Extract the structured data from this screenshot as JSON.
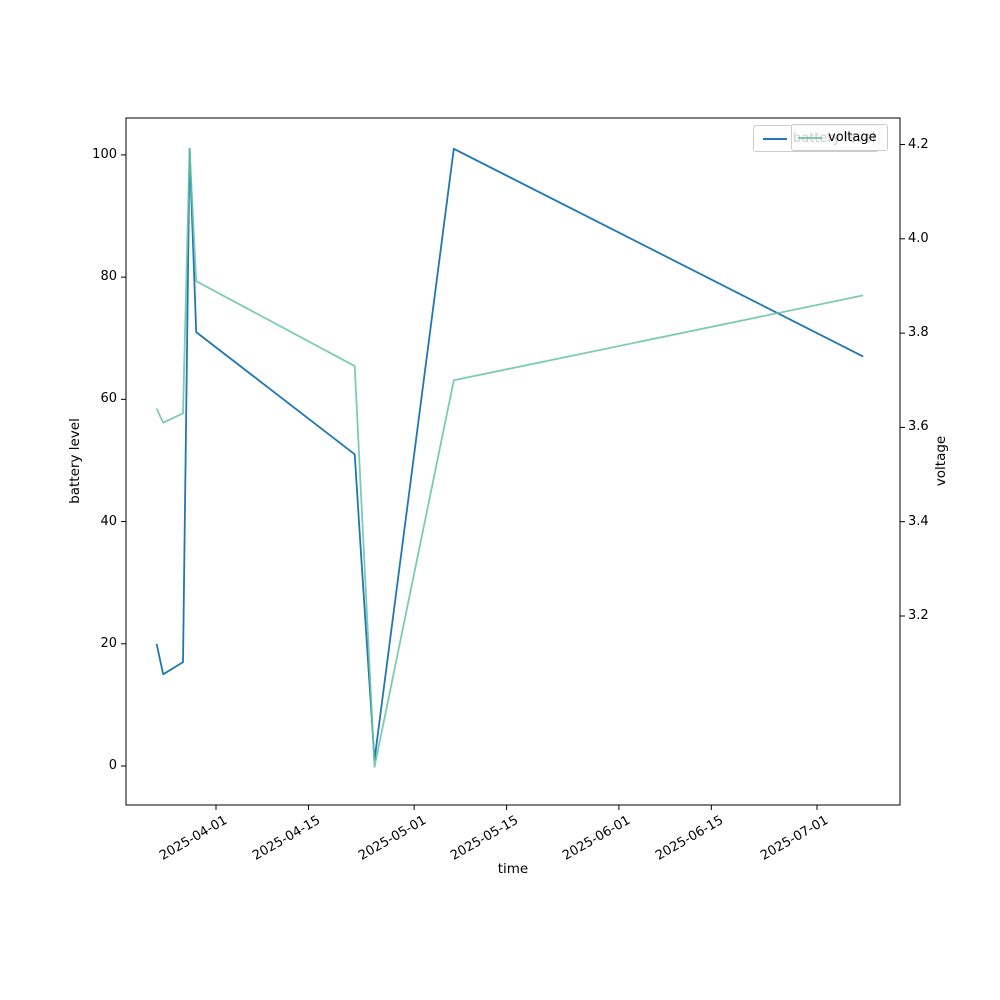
{
  "figure": {
    "background": "#ffffff",
    "frame_color": "#000000"
  },
  "chart_data": {
    "type": "line",
    "title": "",
    "xlabel": "time",
    "grid": false,
    "x_tick_labels": [
      "2025-04-01",
      "2025-04-15",
      "2025-05-01",
      "2025-05-15",
      "2025-06-01",
      "2025-06-15",
      "2025-07-01"
    ],
    "axes": {
      "left": {
        "label": "battery level",
        "tick_labels": [
          "0",
          "20",
          "40",
          "60",
          "80",
          "100"
        ],
        "range": [
          -6,
          106
        ]
      },
      "right": {
        "label": "voltage",
        "tick_labels": [
          "3.2",
          "3.4",
          "3.6",
          "3.8",
          "4.0",
          "4.2"
        ],
        "range": [
          2.8,
          4.26
        ]
      }
    },
    "legend": {
      "position": "upper right",
      "entries": [
        "battery level",
        "voltage"
      ]
    },
    "series": [
      {
        "name": "battery level",
        "axis": "left",
        "color": "#1f77b4",
        "opacity": 1,
        "points": [
          [
            "2025-03-23",
            20
          ],
          [
            "2025-03-24",
            15
          ],
          [
            "2025-03-27",
            17
          ],
          [
            "2025-03-28",
            101
          ],
          [
            "2025-03-29",
            71
          ],
          [
            "2025-04-22",
            51
          ],
          [
            "2025-04-23",
            34
          ],
          [
            "2025-04-25",
            1
          ],
          [
            "2025-05-07",
            101
          ],
          [
            "2025-07-08",
            67
          ]
        ]
      },
      {
        "name": "voltage",
        "axis": "right",
        "color": "#66c2a5",
        "opacity": 0.85,
        "points": [
          [
            "2025-03-23",
            3.64
          ],
          [
            "2025-03-24",
            3.61
          ],
          [
            "2025-03-27",
            3.63
          ],
          [
            "2025-03-28",
            4.19
          ],
          [
            "2025-03-29",
            3.91
          ],
          [
            "2025-04-22",
            3.73
          ],
          [
            "2025-04-25",
            2.88
          ],
          [
            "2025-05-07",
            3.7
          ],
          [
            "2025-07-08",
            3.88
          ]
        ]
      }
    ]
  }
}
